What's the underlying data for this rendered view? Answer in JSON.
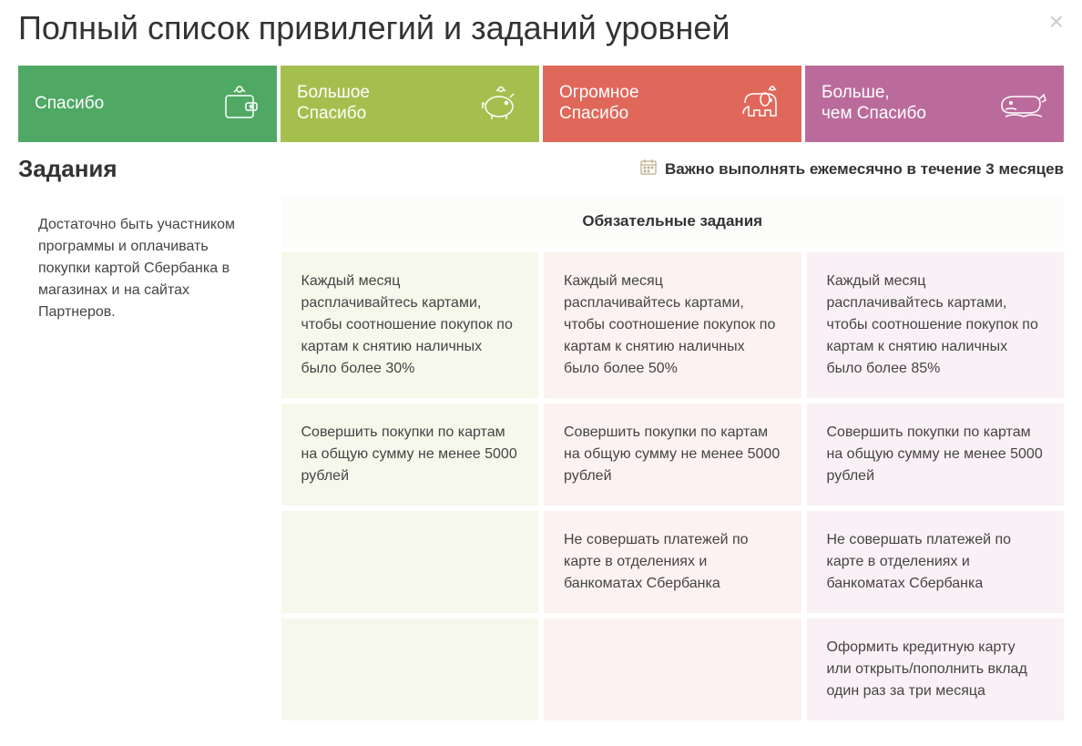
{
  "title": "Полный список привилегий и заданий уровней",
  "close_label": "×",
  "levels": [
    {
      "label": "Спасибо",
      "bg": "#4fa964",
      "icon": "wallet"
    },
    {
      "label": "Большое\nСпасибо",
      "bg": "#a5bf4e",
      "icon": "piggy"
    },
    {
      "label": "Огромное\nСпасибо",
      "bg": "#e0685b",
      "icon": "elephant"
    },
    {
      "label": "Больше,\nчем Спасибо",
      "bg": "#bb6b9b",
      "icon": "whale"
    }
  ],
  "section_title": "Задания",
  "notice": "Важно выполнять ежемесячно в течение 3 месяцев",
  "required_header": "Обязательные задания",
  "intro_col1": "Достаточно быть участником программы и оплачивать покупки картой Сбербанка в магазинах и на сайтах Партнеров.",
  "tasks": {
    "row1": {
      "col2": "Каждый месяц расплачивайтесь картами, чтобы соотношение покупок по картам к снятию наличных было более 30%",
      "col3": "Каждый месяц расплачивайтесь картами, чтобы соотношение покупок по картам к снятию наличных было более 50%",
      "col4": "Каждый месяц расплачивайтесь картами, чтобы соотношение покупок по картам к снятию наличных было более 85%"
    },
    "row2": {
      "col2": "Совершить покупки по картам на общую сумму не менее 5000 рублей",
      "col3": "Совершить покупки по картам на общую сумму не менее 5000 рублей",
      "col4": "Совершить покупки по картам на общую сумму не менее 5000 рублей"
    },
    "row3": {
      "col3": "Не совершать платежей по карте в отделениях и банкоматах Сбербанка",
      "col4": "Не совершать платежей по карте в отделениях и банкоматах Сбербанка"
    },
    "row4": {
      "col4": "Оформить кредитную карту или открыть/пополнить вклад один раз за три месяца"
    }
  },
  "colors": {
    "col2_bg": "#f7f8ec",
    "col3_bg": "#fcf2f1",
    "col4_bg": "#f9f1f6",
    "text": "#444444"
  }
}
